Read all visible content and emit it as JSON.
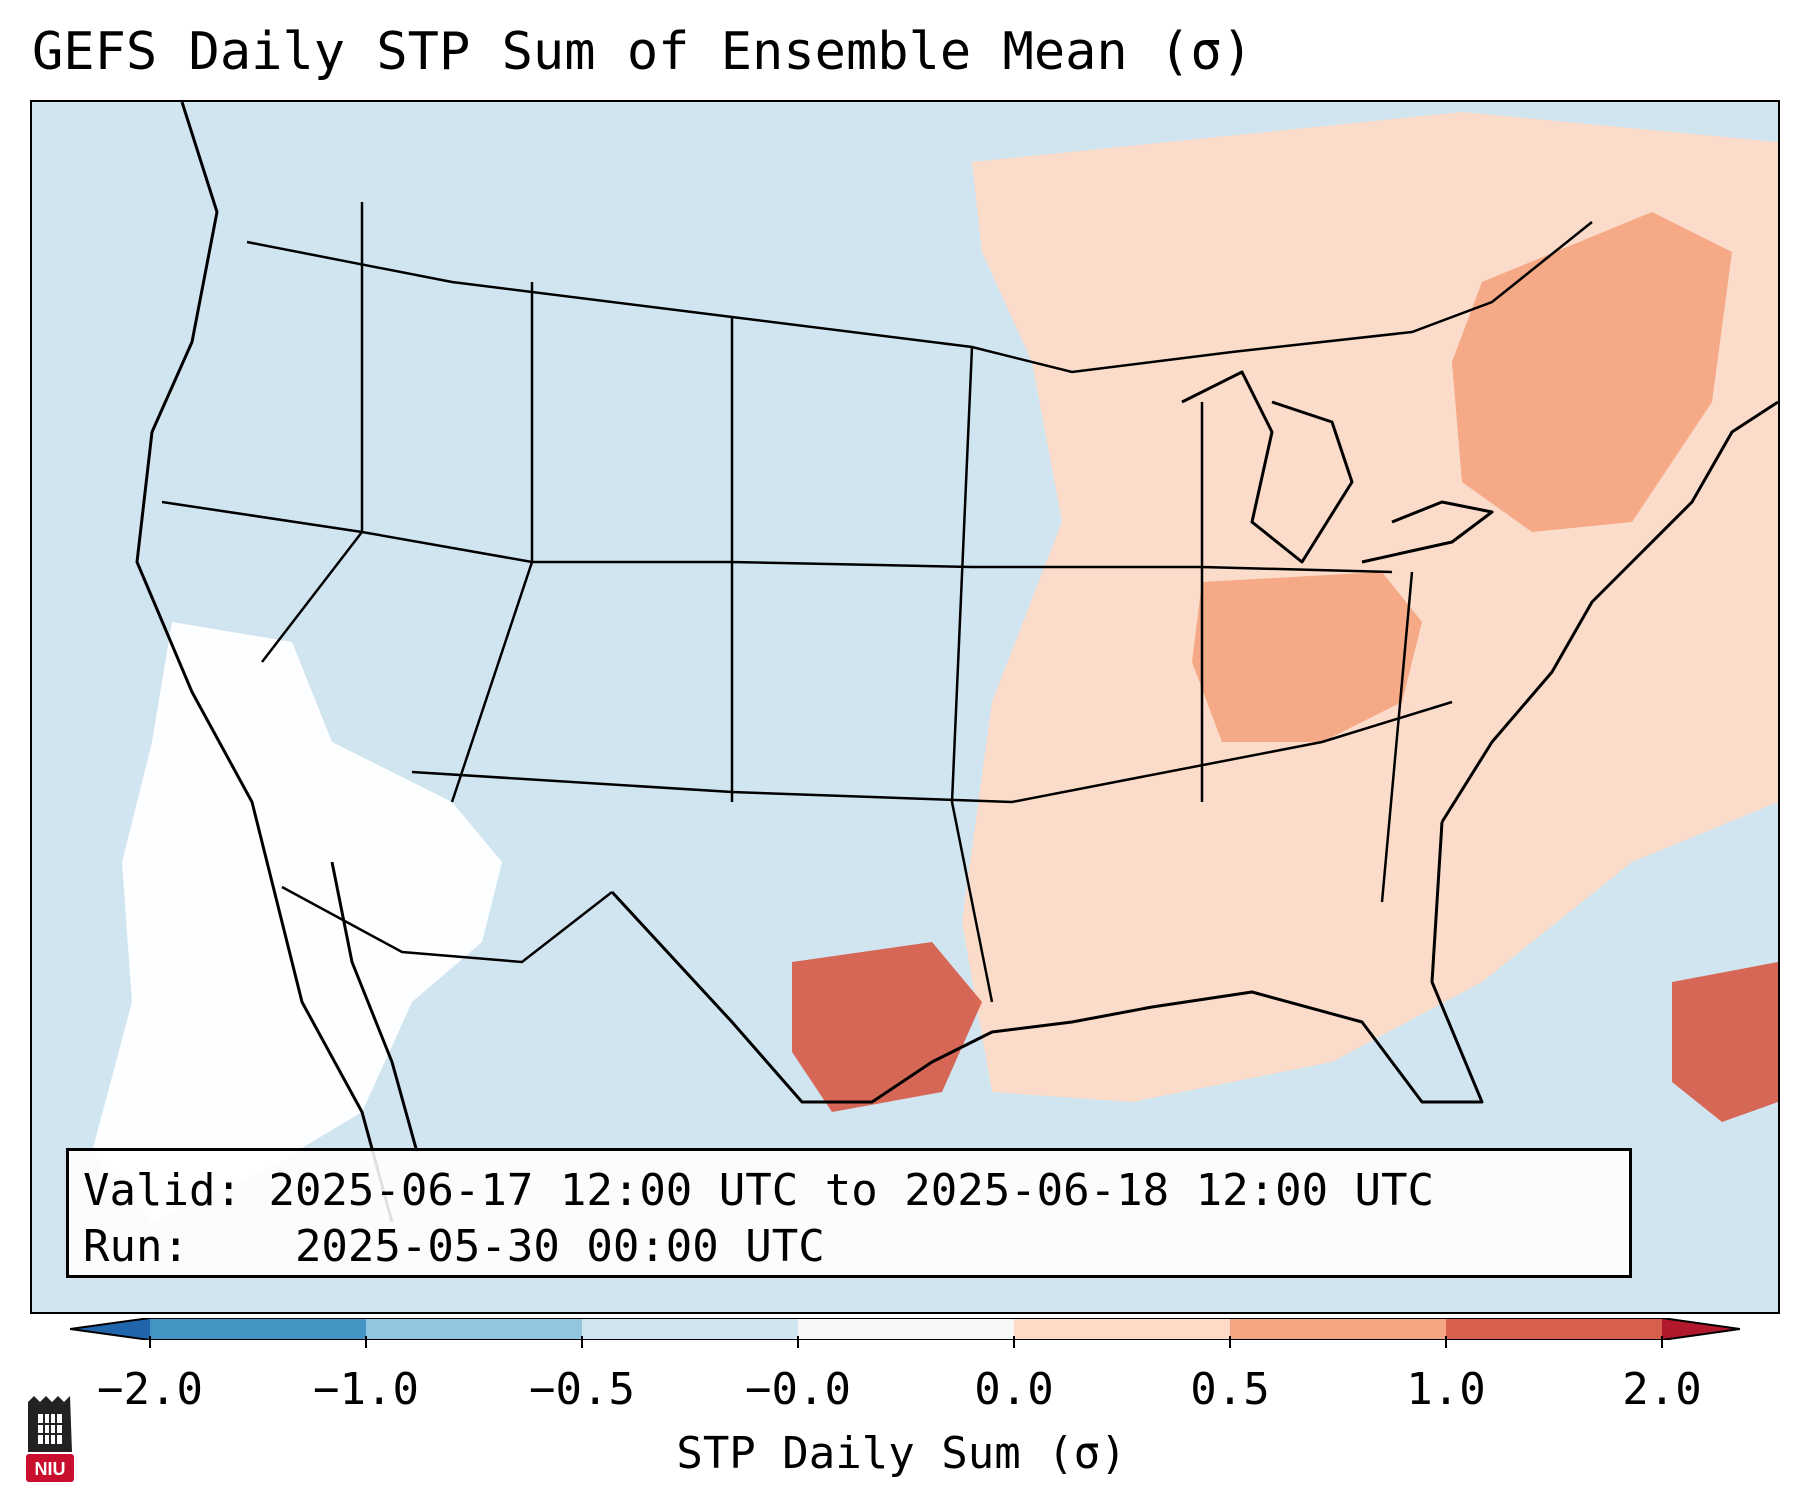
{
  "title": "GEFS Daily STP Sum of Ensemble Mean (σ)",
  "info": {
    "valid_label": "Valid:",
    "valid_value": "2025-06-17 12:00 UTC to 2025-06-18 12:00 UTC",
    "run_label": "Run:",
    "run_value": "2025-05-30 00:00 UTC"
  },
  "colorbar": {
    "label": "STP Daily Sum (σ)",
    "ticks": [
      "−2.0",
      "−1.0",
      "−0.5",
      "−0.0",
      "0.0",
      "0.5",
      "1.0",
      "2.0"
    ],
    "colors": [
      "#2166ac",
      "#4393c3",
      "#92c5de",
      "#d1e5f0",
      "#f7f7f7",
      "#fddbc7",
      "#f4a582",
      "#d6604d",
      "#b2182b"
    ]
  },
  "map": {
    "background_color": "#d1e5f0",
    "anomaly_regions": [
      {
        "name": "southwest-neutral-area",
        "color": "#ffffff"
      },
      {
        "name": "northeast-positive-area",
        "color": "#fddbc7"
      },
      {
        "name": "ohio-valley-positive-area",
        "color": "#f4a582"
      },
      {
        "name": "texas-positive-area",
        "color": "#d6604d"
      },
      {
        "name": "new-england-positive-area",
        "color": "#f4a582"
      },
      {
        "name": "atlantic-positive-area",
        "color": "#d6604d"
      }
    ]
  },
  "logo": {
    "text": "NIU",
    "color": "#c8102e"
  }
}
